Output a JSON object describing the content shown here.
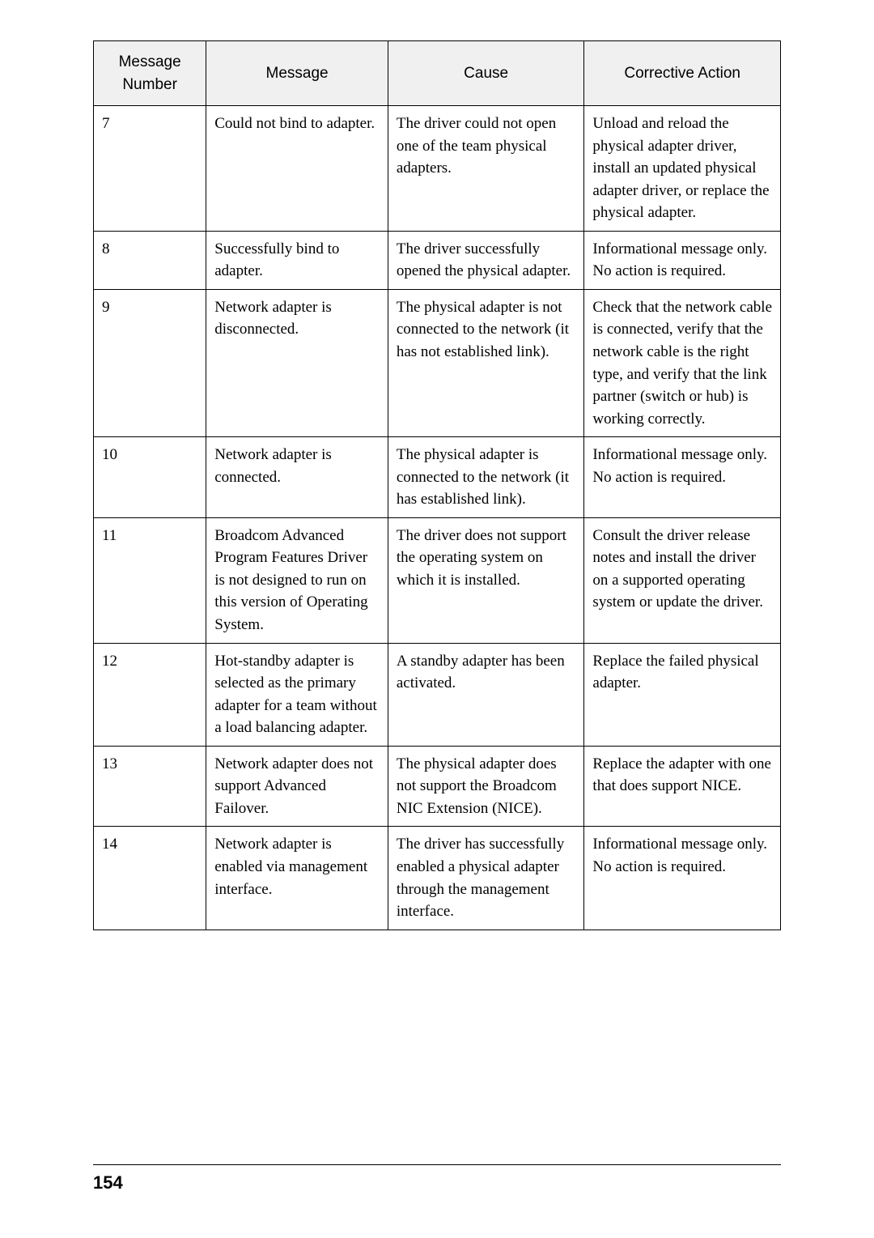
{
  "table": {
    "columns": [
      "Message Number",
      "Message",
      "Cause",
      "Corrective Action"
    ],
    "header_bg": "#f0f0f0",
    "border_color": "#000000",
    "header_font": "Arial",
    "body_font": "Times New Roman",
    "header_fontsize": 19,
    "body_fontsize": 19,
    "rows": [
      {
        "number": "7",
        "message": "Could not bind to adapter.",
        "cause": "The driver could not open one of the team physical adapters.",
        "action": "Unload and reload the physical adapter driver, install an updated physical adapter driver, or replace the physical adapter."
      },
      {
        "number": "8",
        "message": "Successfully bind to adapter.",
        "cause": "The driver successfully opened the physical adapter.",
        "action": "Informational message only.\nNo action is required."
      },
      {
        "number": "9",
        "message": "Network adapter is disconnected.",
        "cause": "The physical adapter is not connected to the network (it has not established link).",
        "action": "Check that the network cable is connected, verify that the network cable is the right type, and verify that the link partner (switch or hub) is working correctly."
      },
      {
        "number": "10",
        "message": "Network adapter is connected.",
        "cause": "The physical adapter is connected to the network (it has established link).",
        "action": "Informational message only.\nNo action is required."
      },
      {
        "number": "11",
        "message": "Broadcom Advanced Program Features Driver is not designed to run on this version of Operating System.",
        "cause": "The driver does not support the operating system on which it is installed.",
        "action": "Consult the driver release notes and install the driver on a supported operating system or update the driver."
      },
      {
        "number": "12",
        "message": "Hot-standby adapter is selected as the primary adapter for a team without a load balancing adapter.",
        "cause": "A standby adapter has been activated.",
        "action": "Replace the failed physical adapter."
      },
      {
        "number": "13",
        "message": "Network adapter does not support Advanced Failover.",
        "cause": "The physical adapter does not support the Broadcom NIC Extension (NICE).",
        "action": "Replace the adapter with one that does support NICE."
      },
      {
        "number": "14",
        "message": "Network adapter is enabled via management interface.",
        "cause": "The driver has successfully enabled a physical adapter through the management interface.",
        "action": "Informational message only.\nNo action is required."
      }
    ]
  },
  "page_number": "154",
  "background_color": "#ffffff"
}
